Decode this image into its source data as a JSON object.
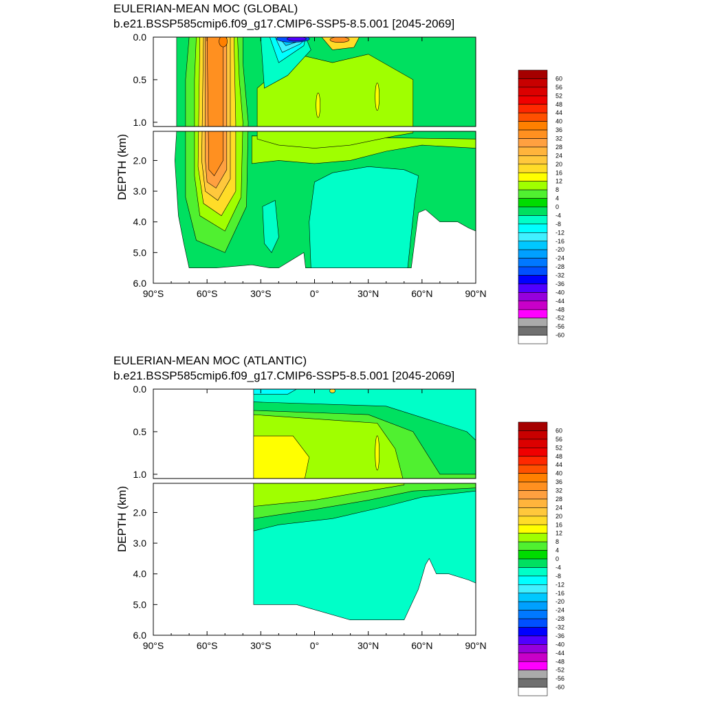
{
  "chart_data": [
    {
      "type": "heatmap",
      "title": "EULERIAN-MEAN MOC (GLOBAL)",
      "subtitle": "b.e21.BSSP585cmip6.f09_g17.CMIP6-SSP5-8.5.001 [2045-2069]",
      "ylabel": "DEPTH (km)",
      "xlabel": "",
      "x_ticks": [
        "90°S",
        "60°S",
        "30°S",
        "0°",
        "30°N",
        "60°N",
        "90°N"
      ],
      "y_ticks_upper": [
        "0.0",
        "0.5",
        "1.0"
      ],
      "y_ticks_lower": [
        "2.0",
        "3.0",
        "4.0",
        "5.0",
        "6.0"
      ],
      "xlim": [
        -90,
        90
      ],
      "ylim_km": [
        0,
        6
      ],
      "colorbar_labels": [
        "60",
        "56",
        "52",
        "48",
        "44",
        "40",
        "36",
        "32",
        "28",
        "24",
        "20",
        "16",
        "12",
        "8",
        "4",
        "0",
        "-4",
        "-8",
        "-12",
        "-16",
        "-20",
        "-24",
        "-28",
        "-32",
        "-36",
        "-40",
        "-44",
        "-48",
        "-52",
        "-56",
        "-60"
      ],
      "features": [
        {
          "name": "Southern Ocean cell",
          "lat_range": [
            -65,
            -40
          ],
          "depth_km": [
            0,
            4.5
          ],
          "max": 40
        },
        {
          "name": "Tropical negative cell",
          "lat_range": [
            -30,
            0
          ],
          "depth_km": [
            0,
            0.3
          ],
          "min": -40
        },
        {
          "name": "Tropical positive cell",
          "lat_range": [
            5,
            25
          ],
          "depth_km": [
            0,
            0.2
          ],
          "max": 24
        },
        {
          "name": "Abyssal negative cell",
          "lat_range": [
            0,
            60
          ],
          "depth_km": [
            2.5,
            5.5
          ],
          "value": -2
        }
      ]
    },
    {
      "type": "heatmap",
      "title": "EULERIAN-MEAN MOC (ATLANTIC)",
      "subtitle": "b.e21.BSSP585cmip6.f09_g17.CMIP6-SSP5-8.5.001 [2045-2069]",
      "ylabel": "DEPTH (km)",
      "xlabel": "",
      "x_ticks": [
        "90°S",
        "60°S",
        "30°S",
        "0°",
        "30°N",
        "60°N",
        "90°N"
      ],
      "y_ticks_upper": [
        "0.0",
        "0.5",
        "1.0"
      ],
      "y_ticks_lower": [
        "2.0",
        "3.0",
        "4.0",
        "5.0",
        "6.0"
      ],
      "xlim": [
        -90,
        90
      ],
      "ylim_km": [
        0,
        6
      ],
      "colorbar_labels": [
        "60",
        "56",
        "52",
        "48",
        "44",
        "40",
        "36",
        "32",
        "28",
        "24",
        "20",
        "16",
        "12",
        "8",
        "4",
        "0",
        "-4",
        "-8",
        "-12",
        "-16",
        "-20",
        "-24",
        "-28",
        "-32",
        "-36",
        "-40",
        "-44",
        "-48",
        "-52",
        "-56",
        "-60"
      ],
      "features": [
        {
          "name": "AMOC upper cell",
          "lat_range": [
            -34,
            50
          ],
          "depth_km": [
            0,
            1.6
          ],
          "max": 14
        },
        {
          "name": "Abyssal cell",
          "lat_range": [
            -34,
            65
          ],
          "depth_km": [
            2.5,
            5.5
          ],
          "value": -2
        }
      ]
    }
  ],
  "colors": [
    "#a50000",
    "#c80000",
    "#dc0000",
    "#f00000",
    "#ff2800",
    "#ff5000",
    "#ff8000",
    "#ff9020",
    "#ffa040",
    "#ffb43c",
    "#ffc83c",
    "#ffdc28",
    "#ffff00",
    "#a0ff00",
    "#50f030",
    "#00dc00",
    "#00e060",
    "#00ffc8",
    "#00ffff",
    "#40f0ff",
    "#00c8ff",
    "#00a0ff",
    "#0078ff",
    "#0050ff",
    "#0000ff",
    "#5000ff",
    "#9600dc",
    "#c800c8",
    "#ff00ff",
    "#aaaaaa",
    "#707070",
    "#ffffff"
  ]
}
